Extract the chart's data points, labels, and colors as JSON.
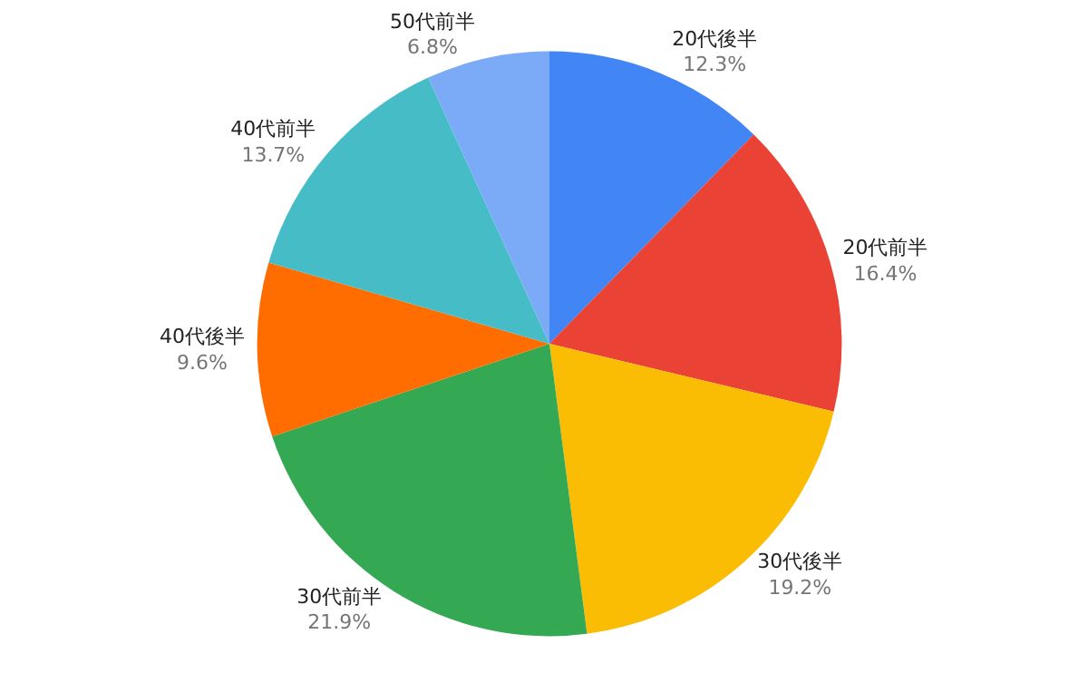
{
  "chart_data": {
    "type": "pie",
    "categories": [
      "20代後半",
      "20代前半",
      "30代後半",
      "30代前半",
      "40代後半",
      "40代前半",
      "50代前半"
    ],
    "values": [
      12.3,
      16.4,
      19.2,
      21.9,
      9.6,
      13.7,
      6.8
    ],
    "value_labels": [
      "12.3%",
      "16.4%",
      "19.2%",
      "21.9%",
      "9.6%",
      "13.7%",
      "6.8%"
    ],
    "colors": [
      "#4285f4",
      "#ea4335",
      "#fbbc04",
      "#34a853",
      "#ff6d01",
      "#46bdc6",
      "#7baaf7"
    ],
    "legend": false
  }
}
